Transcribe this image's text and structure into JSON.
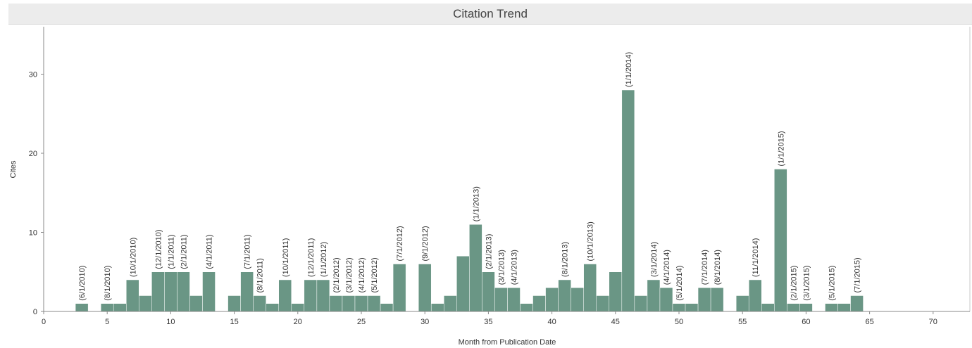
{
  "chart_data": {
    "type": "bar",
    "title": "Citation Trend",
    "xlabel": "Month from Publication Date",
    "ylabel": "Cites",
    "xlim": [
      0,
      72
    ],
    "ylim": [
      0,
      36
    ],
    "x_ticks": [
      0,
      5,
      10,
      15,
      20,
      25,
      30,
      35,
      40,
      45,
      50,
      55,
      60,
      65,
      70
    ],
    "y_ticks": [
      0,
      10,
      20,
      30
    ],
    "bar_color": "#6a9685",
    "bars": [
      {
        "x": 3,
        "value": 1,
        "label": "(6/1/2010)"
      },
      {
        "x": 5,
        "value": 1,
        "label": "(8/1/2010)"
      },
      {
        "x": 6,
        "value": 1,
        "label": ""
      },
      {
        "x": 7,
        "value": 4,
        "label": "(10/1/2010)"
      },
      {
        "x": 8,
        "value": 2,
        "label": ""
      },
      {
        "x": 9,
        "value": 5,
        "label": "(12/1/2010)"
      },
      {
        "x": 10,
        "value": 5,
        "label": "(1/1/2011)"
      },
      {
        "x": 11,
        "value": 5,
        "label": "(2/1/2011)"
      },
      {
        "x": 12,
        "value": 2,
        "label": ""
      },
      {
        "x": 13,
        "value": 5,
        "label": "(4/1/2011)"
      },
      {
        "x": 15,
        "value": 2,
        "label": ""
      },
      {
        "x": 16,
        "value": 5,
        "label": "(7/1/2011)"
      },
      {
        "x": 17,
        "value": 2,
        "label": "(8/1/2011)"
      },
      {
        "x": 18,
        "value": 1,
        "label": ""
      },
      {
        "x": 19,
        "value": 4,
        "label": "(10/1/2011)"
      },
      {
        "x": 20,
        "value": 1,
        "label": ""
      },
      {
        "x": 21,
        "value": 4,
        "label": "(12/1/2011)"
      },
      {
        "x": 22,
        "value": 4,
        "label": "(1/1/2012)"
      },
      {
        "x": 23,
        "value": 2,
        "label": "(2/1/2012)"
      },
      {
        "x": 24,
        "value": 2,
        "label": "(3/1/2012)"
      },
      {
        "x": 25,
        "value": 2,
        "label": "(4/1/2012)"
      },
      {
        "x": 26,
        "value": 2,
        "label": "(5/1/2012)"
      },
      {
        "x": 27,
        "value": 1,
        "label": ""
      },
      {
        "x": 28,
        "value": 6,
        "label": "(7/1/2012)"
      },
      {
        "x": 30,
        "value": 6,
        "label": "(9/1/2012)"
      },
      {
        "x": 31,
        "value": 1,
        "label": ""
      },
      {
        "x": 32,
        "value": 2,
        "label": ""
      },
      {
        "x": 33,
        "value": 7,
        "label": ""
      },
      {
        "x": 34,
        "value": 11,
        "label": "(1/1/2013)"
      },
      {
        "x": 35,
        "value": 5,
        "label": "(2/1/2013)"
      },
      {
        "x": 36,
        "value": 3,
        "label": "(3/1/2013)"
      },
      {
        "x": 37,
        "value": 3,
        "label": "(4/1/2013)"
      },
      {
        "x": 38,
        "value": 1,
        "label": ""
      },
      {
        "x": 39,
        "value": 2,
        "label": ""
      },
      {
        "x": 40,
        "value": 3,
        "label": ""
      },
      {
        "x": 41,
        "value": 4,
        "label": "(8/1/2013)"
      },
      {
        "x": 42,
        "value": 3,
        "label": ""
      },
      {
        "x": 43,
        "value": 6,
        "label": "(10/1/2013)"
      },
      {
        "x": 44,
        "value": 2,
        "label": ""
      },
      {
        "x": 45,
        "value": 5,
        "label": ""
      },
      {
        "x": 46,
        "value": 28,
        "label": "(1/1/2014)"
      },
      {
        "x": 47,
        "value": 2,
        "label": ""
      },
      {
        "x": 48,
        "value": 4,
        "label": "(3/1/2014)"
      },
      {
        "x": 49,
        "value": 3,
        "label": "(4/1/2014)"
      },
      {
        "x": 50,
        "value": 1,
        "label": "(5/1/2014)"
      },
      {
        "x": 51,
        "value": 1,
        "label": ""
      },
      {
        "x": 52,
        "value": 3,
        "label": "(7/1/2014)"
      },
      {
        "x": 53,
        "value": 3,
        "label": "(8/1/2014)"
      },
      {
        "x": 55,
        "value": 2,
        "label": ""
      },
      {
        "x": 56,
        "value": 4,
        "label": "(11/1/2014)"
      },
      {
        "x": 57,
        "value": 1,
        "label": ""
      },
      {
        "x": 58,
        "value": 18,
        "label": "(1/1/2015)"
      },
      {
        "x": 59,
        "value": 1,
        "label": "(2/1/2015)"
      },
      {
        "x": 60,
        "value": 1,
        "label": "(3/1/2015)"
      },
      {
        "x": 62,
        "value": 1,
        "label": "(5/1/2015)"
      },
      {
        "x": 63,
        "value": 1,
        "label": ""
      },
      {
        "x": 64,
        "value": 2,
        "label": "(7/1/2015)"
      }
    ]
  }
}
